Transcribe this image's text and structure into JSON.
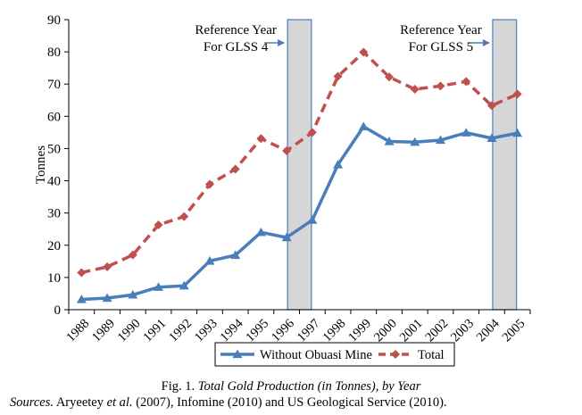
{
  "chart_data": {
    "type": "line",
    "ylabel": "Tonnes",
    "xlabel": "",
    "ylim": [
      0,
      90
    ],
    "yticks": [
      0,
      10,
      20,
      30,
      40,
      50,
      60,
      70,
      80,
      90
    ],
    "categories": [
      "1988",
      "1989",
      "1990",
      "1991",
      "1992",
      "1993",
      "1994",
      "1995",
      "1996",
      "1997",
      "1998",
      "1999",
      "2000",
      "2001",
      "2002",
      "2003",
      "2004",
      "2005"
    ],
    "series": [
      {
        "name": "Without Obuasi Mine",
        "color": "#4a7ebb",
        "marker": "triangle",
        "dash": "solid",
        "values": [
          3.2,
          3.6,
          4.6,
          7.0,
          7.4,
          15.1,
          16.9,
          24.0,
          22.4,
          27.8,
          45.0,
          56.8,
          52.2,
          52.0,
          52.6,
          54.9,
          53.2,
          54.8
        ]
      },
      {
        "name": "Total",
        "color": "#c0504d",
        "marker": "diamond",
        "dash": "dashed",
        "values": [
          11.5,
          13.3,
          17.0,
          26.3,
          28.9,
          38.9,
          43.6,
          53.1,
          49.3,
          55.0,
          72.4,
          79.9,
          72.2,
          68.4,
          69.4,
          70.8,
          63.3,
          66.9
        ]
      }
    ],
    "reference_bands": [
      {
        "category": "1996",
        "label_lines": [
          "Reference Year",
          "For GLSS 4"
        ]
      },
      {
        "category": "2004",
        "label_lines": [
          "Reference Year",
          "For GLSS 5"
        ]
      }
    ],
    "legend_position": "bottom"
  },
  "caption": {
    "prefix": "Fig. 1.",
    "title": "Total Gold Production (in Tonnes), by Year"
  },
  "sources": {
    "label": "Sources.",
    "author1": "Aryeetey",
    "etal": "et al.",
    "rest": "(2007), Infomine (2010) and US Geological Service (2010)."
  }
}
